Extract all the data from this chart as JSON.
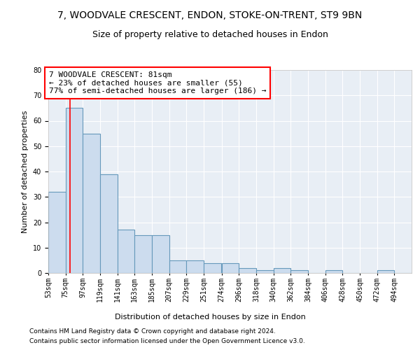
{
  "title1": "7, WOODVALE CRESCENT, ENDON, STOKE-ON-TRENT, ST9 9BN",
  "title2": "Size of property relative to detached houses in Endon",
  "xlabel": "Distribution of detached houses by size in Endon",
  "ylabel": "Number of detached properties",
  "bar_color": "#ccdcee",
  "bar_edge_color": "#6699bb",
  "bin_edges": [
    53,
    75,
    97,
    119,
    141,
    163,
    185,
    207,
    229,
    251,
    274,
    296,
    318,
    340,
    362,
    384,
    406,
    428,
    450,
    472,
    494,
    516
  ],
  "bar_values": [
    32,
    65,
    55,
    39,
    17,
    15,
    15,
    5,
    5,
    4,
    4,
    2,
    1,
    2,
    1,
    0,
    1,
    0,
    0,
    1,
    0
  ],
  "x_tick_labels": [
    "53sqm",
    "75sqm",
    "97sqm",
    "119sqm",
    "141sqm",
    "163sqm",
    "185sqm",
    "207sqm",
    "229sqm",
    "251sqm",
    "274sqm",
    "296sqm",
    "318sqm",
    "340sqm",
    "362sqm",
    "384sqm",
    "406sqm",
    "428sqm",
    "450sqm",
    "472sqm",
    "494sqm"
  ],
  "red_line_x": 81,
  "ann_line1": "7 WOODVALE CRESCENT: 81sqm",
  "ann_line2": "← 23% of detached houses are smaller (55)",
  "ann_line3": "77% of semi-detached houses are larger (186) →",
  "footer1": "Contains HM Land Registry data © Crown copyright and database right 2024.",
  "footer2": "Contains public sector information licensed under the Open Government Licence v3.0.",
  "ylim_max": 80,
  "yticks": [
    0,
    10,
    20,
    30,
    40,
    50,
    60,
    70,
    80
  ],
  "background_color": "#e8eef5",
  "grid_color": "#ffffff",
  "title1_fontsize": 10,
  "title2_fontsize": 9,
  "tick_fontsize": 7,
  "ylabel_fontsize": 8,
  "xlabel_fontsize": 8,
  "annotation_fontsize": 8,
  "footer_fontsize": 6.5
}
